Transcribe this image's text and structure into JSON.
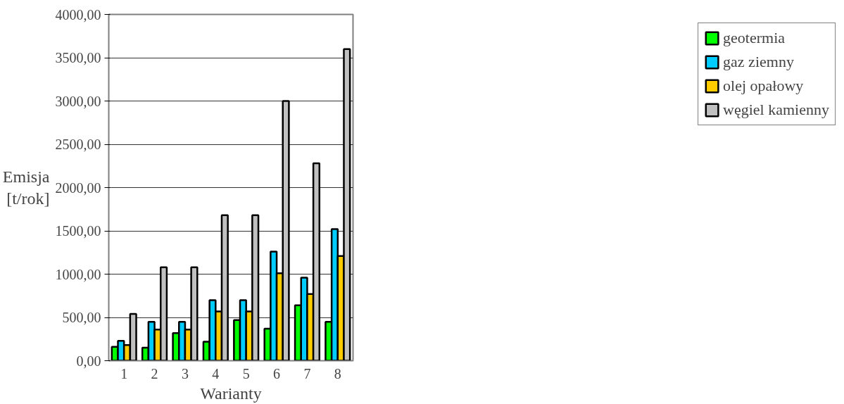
{
  "chart_data": {
    "type": "bar",
    "xlabel": "Warianty",
    "ylabel": "Emisja\n[t/rok]",
    "categories": [
      "1",
      "2",
      "3",
      "4",
      "5",
      "6",
      "7",
      "8"
    ],
    "series": [
      {
        "name": "geotermia",
        "color": "#00ff00",
        "values": [
          160,
          150,
          320,
          220,
          470,
          370,
          640,
          450
        ]
      },
      {
        "name": "gaz ziemny",
        "color": "#00ccff",
        "values": [
          230,
          450,
          450,
          700,
          700,
          1260,
          960,
          1520
        ]
      },
      {
        "name": "olej opałowy",
        "color": "#ffcc00",
        "values": [
          180,
          360,
          360,
          570,
          570,
          1010,
          770,
          1210
        ]
      },
      {
        "name": "węgiel kamienny",
        "color": "#c0c0c0",
        "values": [
          540,
          1080,
          1080,
          1680,
          1680,
          3000,
          2280,
          3600
        ]
      }
    ],
    "ylim": [
      0,
      4000
    ],
    "yticks": [
      {
        "value": 0,
        "label": "0,00"
      },
      {
        "value": 500,
        "label": "500,00"
      },
      {
        "value": 1000,
        "label": "1000,00"
      },
      {
        "value": 1500,
        "label": "1500,00"
      },
      {
        "value": 2000,
        "label": "2000,00"
      },
      {
        "value": 2500,
        "label": "2500,00"
      },
      {
        "value": 3000,
        "label": "3000,00"
      },
      {
        "value": 3500,
        "label": "3500,00"
      },
      {
        "value": 4000,
        "label": "4000,00"
      }
    ],
    "grid": "y",
    "legend": "right"
  }
}
